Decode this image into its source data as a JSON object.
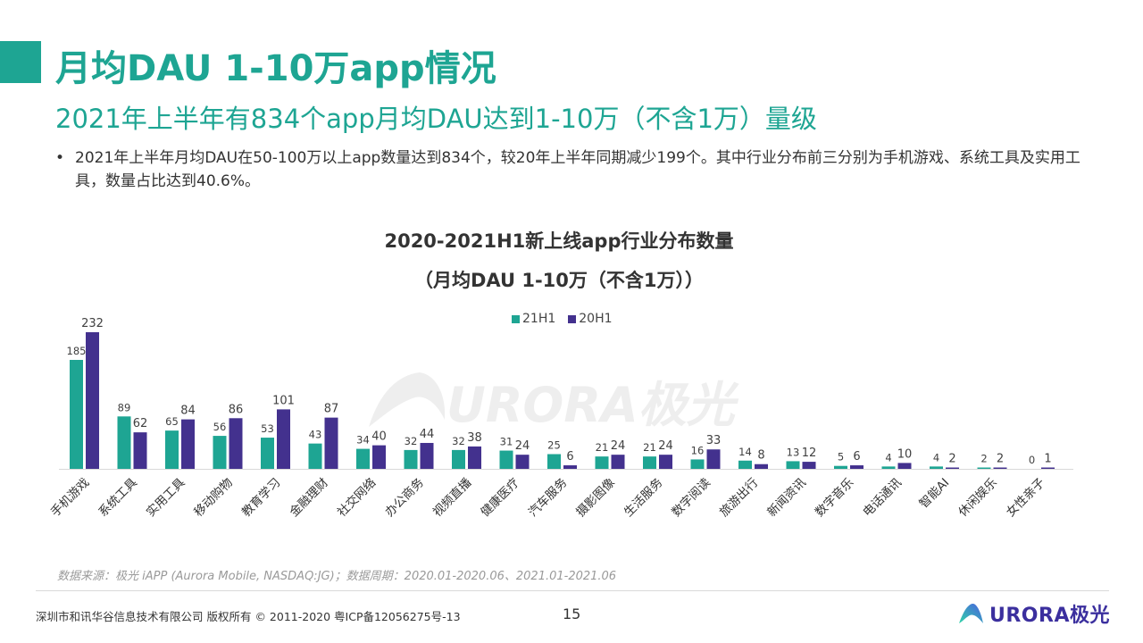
{
  "header": {
    "title": "月均DAU 1-10万app情况",
    "subtitle": "2021年上半年有834个app月均DAU达到1-10万（不含1万）量级",
    "bullet": "2021年上半年月均DAU在50-100万以上app数量达到834个，较20年上半年同期减少199个。其中行业分布前三分别为手机游戏、系统工具及实用工具，数量占比达到40.6%。"
  },
  "chart_data": {
    "type": "bar",
    "title_line1": "2020-2021H1新上线app行业分布数量",
    "title_line2": "（月均DAU 1-10万（不含1万））",
    "xlabel": "",
    "ylabel": "",
    "ylim": [
      0,
      240
    ],
    "grid": false,
    "legend_position": "top-center",
    "categories": [
      "手机游戏",
      "系统工具",
      "实用工具",
      "移动购物",
      "教育学习",
      "金融理财",
      "社交网络",
      "办公商务",
      "视频直播",
      "健康医疗",
      "汽车服务",
      "摄影图像",
      "生活服务",
      "数字阅读",
      "旅游出行",
      "新闻资讯",
      "数字音乐",
      "电话通讯",
      "智能AI",
      "休闲娱乐",
      "女性亲子"
    ],
    "series": [
      {
        "name": "21H1",
        "color": "#1ea593",
        "values": [
          185,
          89,
          65,
          56,
          53,
          43,
          34,
          32,
          32,
          31,
          25,
          21,
          21,
          16,
          14,
          13,
          5,
          4,
          4,
          2,
          0
        ]
      },
      {
        "name": "20H1",
        "color": "#43318e",
        "values": [
          232,
          62,
          84,
          86,
          101,
          87,
          40,
          44,
          38,
          24,
          6,
          24,
          24,
          33,
          8,
          12,
          6,
          10,
          2,
          2,
          1
        ]
      }
    ]
  },
  "watermark": "URORA极光",
  "footer": {
    "source": "数据来源：极光 iAPP (Aurora Mobile, NASDAQ:JG)；数据周期：2020.01-2020.06、2021.01-2021.06",
    "copyright": "深圳市和讯华谷信息技术有限公司  版权所有 © 2011-2020 粤ICP备12056275号-13",
    "page_number": "15",
    "logo_text": "URORA极光"
  },
  "colors": {
    "accent": "#1ea593",
    "series_21h1": "#1ea593",
    "series_20h1": "#43318e"
  }
}
